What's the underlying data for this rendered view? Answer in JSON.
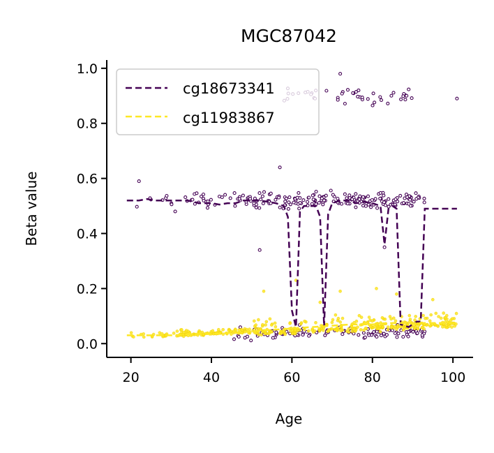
{
  "chart_data": {
    "type": "scatter",
    "title": "MGC87042",
    "xlabel": "Age",
    "ylabel": "Beta value",
    "xlim": [
      14,
      105
    ],
    "ylim": [
      -0.05,
      1.03
    ],
    "xticks": [
      20,
      40,
      60,
      80,
      100
    ],
    "yticks": [
      0.0,
      0.2,
      0.4,
      0.6,
      0.8,
      1.0
    ],
    "xtick_labels": [
      "20",
      "40",
      "60",
      "80",
      "100"
    ],
    "ytick_labels": [
      "0.0",
      "0.2",
      "0.4",
      "0.6",
      "0.8",
      "1.0"
    ],
    "grid": false,
    "legend_position": "top-left",
    "series": [
      {
        "name": "cg18673341",
        "color": "#440154",
        "line_style": "dashed",
        "trend": [
          [
            19,
            0.52
          ],
          [
            22,
            0.52
          ],
          [
            24,
            0.525
          ],
          [
            26,
            0.52
          ],
          [
            30,
            0.52
          ],
          [
            34,
            0.52
          ],
          [
            37,
            0.51
          ],
          [
            40,
            0.51
          ],
          [
            42,
            0.505
          ],
          [
            44,
            0.51
          ],
          [
            46,
            0.51
          ],
          [
            48,
            0.52
          ],
          [
            50,
            0.52
          ],
          [
            52,
            0.52
          ],
          [
            54,
            0.515
          ],
          [
            56,
            0.51
          ],
          [
            58,
            0.5
          ],
          [
            59,
            0.46
          ],
          [
            60,
            0.12
          ],
          [
            61,
            0.06
          ],
          [
            62,
            0.48
          ],
          [
            63,
            0.5
          ],
          [
            64,
            0.5
          ],
          [
            66,
            0.5
          ],
          [
            67,
            0.46
          ],
          [
            68,
            0.06
          ],
          [
            69,
            0.47
          ],
          [
            70,
            0.51
          ],
          [
            72,
            0.52
          ],
          [
            74,
            0.52
          ],
          [
            76,
            0.51
          ],
          [
            78,
            0.515
          ],
          [
            80,
            0.51
          ],
          [
            82,
            0.5
          ],
          [
            83,
            0.36
          ],
          [
            84,
            0.49
          ],
          [
            85,
            0.5
          ],
          [
            86,
            0.49
          ],
          [
            87,
            0.07
          ],
          [
            89,
            0.06
          ],
          [
            91,
            0.08
          ],
          [
            92,
            0.08
          ],
          [
            93,
            0.49
          ],
          [
            96,
            0.49
          ],
          [
            101,
            0.49
          ]
        ],
        "cluster_main": {
          "x_range": [
            19,
            93
          ],
          "center": 0.52,
          "spread": 0.04
        },
        "cluster_high": {
          "x_range": [
            58,
            101
          ],
          "center": 0.9,
          "spread": 0.05
        },
        "outliers": [
          [
            22,
            0.59
          ],
          [
            31,
            0.48
          ],
          [
            52,
            0.34
          ],
          [
            57,
            0.64
          ],
          [
            72,
            0.98
          ],
          [
            83,
            0.35
          ],
          [
            101,
            0.89
          ]
        ]
      },
      {
        "name": "cg11983867",
        "color": "#fde725",
        "line_style": "dashed",
        "trend": [
          [
            19,
            0.03
          ],
          [
            25,
            0.03
          ],
          [
            30,
            0.03
          ],
          [
            36,
            0.035
          ],
          [
            40,
            0.035
          ],
          [
            45,
            0.04
          ],
          [
            50,
            0.045
          ],
          [
            55,
            0.05
          ],
          [
            60,
            0.055
          ],
          [
            65,
            0.06
          ],
          [
            70,
            0.065
          ],
          [
            75,
            0.07
          ],
          [
            80,
            0.07
          ],
          [
            85,
            0.075
          ],
          [
            90,
            0.075
          ],
          [
            95,
            0.075
          ],
          [
            101,
            0.075
          ]
        ],
        "cluster_main": {
          "x_range": [
            19,
            101
          ],
          "center": 0.05,
          "spread": 0.04
        },
        "outliers": [
          [
            53,
            0.19
          ],
          [
            61,
            0.23
          ],
          [
            67,
            0.15
          ],
          [
            72,
            0.19
          ],
          [
            81,
            0.2
          ],
          [
            86,
            0.18
          ],
          [
            95,
            0.16
          ]
        ]
      }
    ]
  }
}
